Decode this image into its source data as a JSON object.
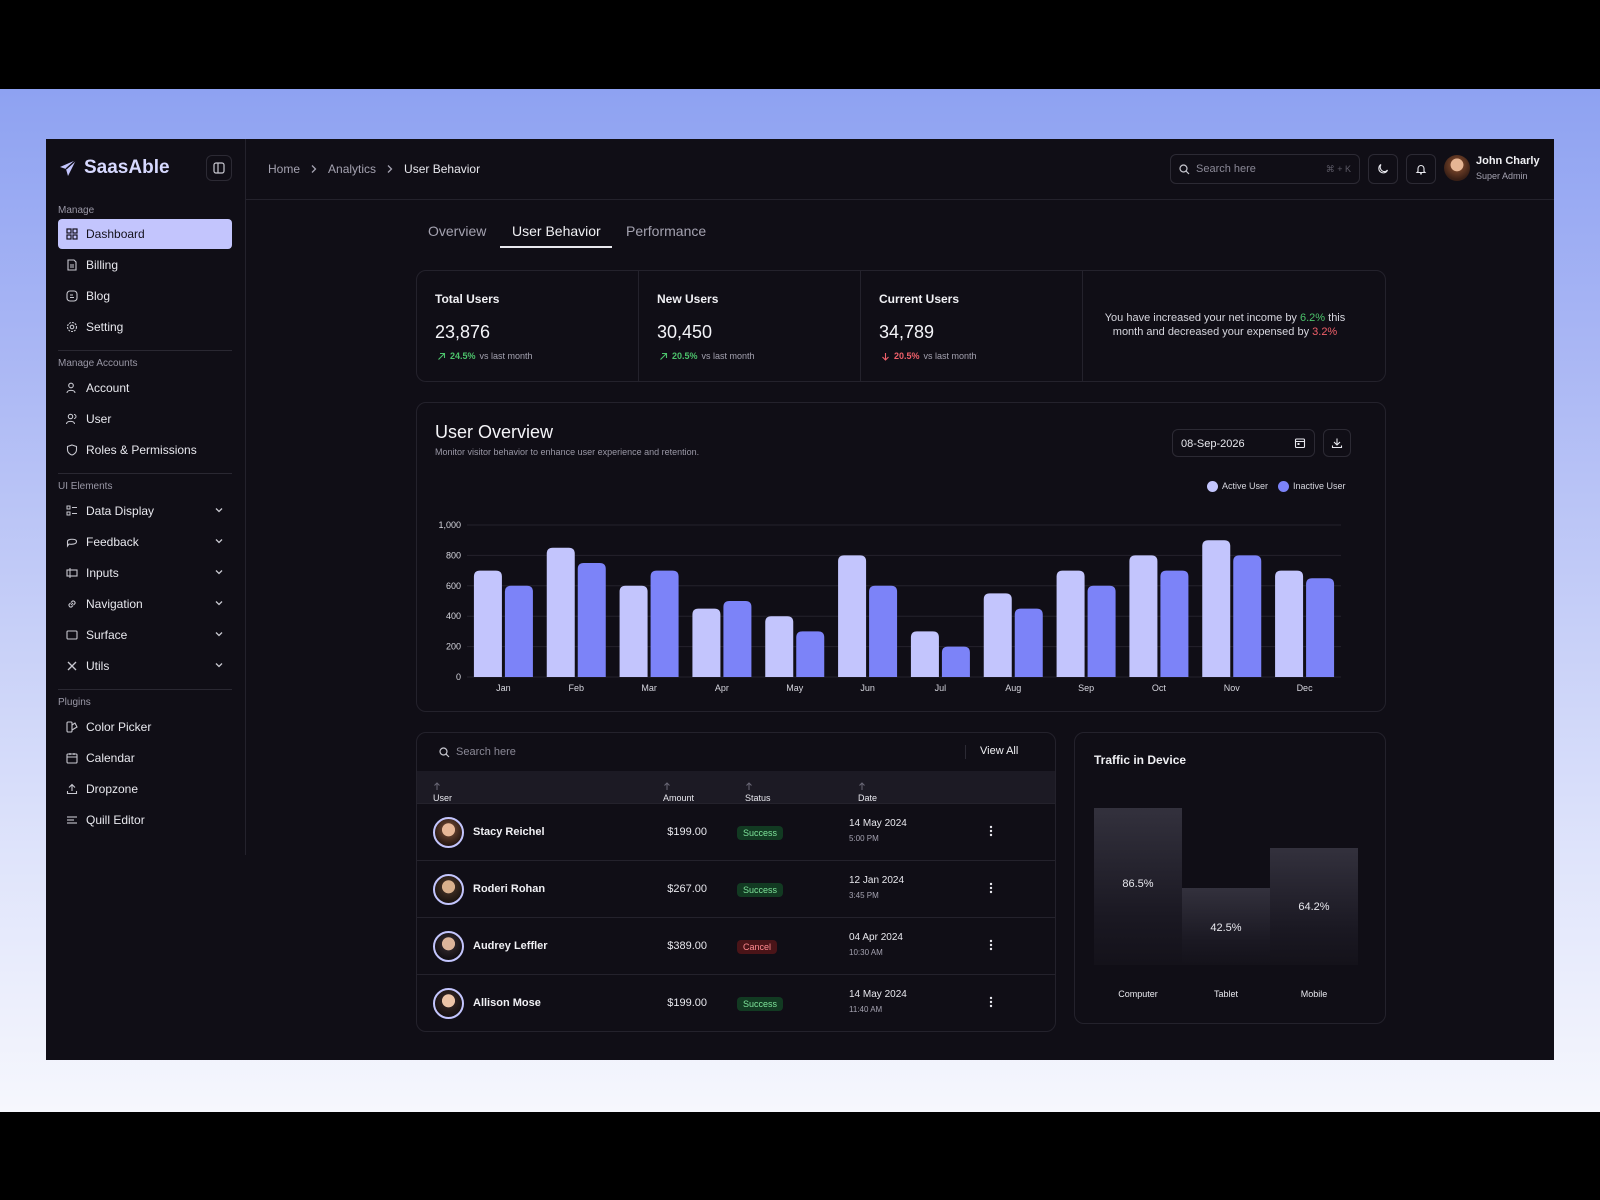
{
  "brand": {
    "name": "SaasAble",
    "accent": "#c3c5fd"
  },
  "sidebar": {
    "sections": [
      {
        "title": "Manage",
        "items": [
          {
            "label": "Dashboard",
            "icon": "grid-icon",
            "active": true
          },
          {
            "label": "Billing",
            "icon": "file-icon"
          },
          {
            "label": "Blog",
            "icon": "blog-icon"
          },
          {
            "label": "Setting",
            "icon": "gear-icon"
          }
        ]
      },
      {
        "title": "Manage Accounts",
        "items": [
          {
            "label": "Account",
            "icon": "user-key-icon"
          },
          {
            "label": "User",
            "icon": "users-icon"
          },
          {
            "label": "Roles & Permissions",
            "icon": "shield-icon"
          }
        ]
      },
      {
        "title": "UI Elements",
        "items": [
          {
            "label": "Data Display",
            "icon": "list-icon"
          },
          {
            "label": "Feedback",
            "icon": "chat-icon"
          },
          {
            "label": "Inputs",
            "icon": "input-icon"
          },
          {
            "label": "Navigation",
            "icon": "link-icon"
          },
          {
            "label": "Surface",
            "icon": "square-icon"
          },
          {
            "label": "Utils",
            "icon": "tools-icon"
          }
        ]
      },
      {
        "title": "Plugins",
        "items": [
          {
            "label": "Color Picker",
            "icon": "color-icon"
          },
          {
            "label": "Calendar",
            "icon": "calendar-icon"
          },
          {
            "label": "Dropzone",
            "icon": "upload-icon"
          },
          {
            "label": "Quill Editor",
            "icon": "text-icon"
          }
        ]
      }
    ]
  },
  "header": {
    "breadcrumb": [
      "Home",
      "Analytics",
      "User Behavior"
    ],
    "search_placeholder": "Search here",
    "search_shortcut": "⌘ + K",
    "user_name": "John Charly",
    "user_role": "Super Admin"
  },
  "tabs": [
    "Overview",
    "User Behavior",
    "Performance"
  ],
  "stats": [
    {
      "label": "Total Users",
      "value": "23,876",
      "change": "24.5%",
      "direction": "up",
      "note": "vs last month"
    },
    {
      "label": "New Users",
      "value": "30,450",
      "change": "20.5%",
      "direction": "up",
      "note": "vs last month"
    },
    {
      "label": "Current Users",
      "value": "34,789",
      "change": "20.5%",
      "direction": "down",
      "note": "vs last month"
    }
  ],
  "income_note": {
    "part1": "You have increased your net income by ",
    "up_value": "6.2%",
    "part2": " this month and decreased your expensed by ",
    "down_value": "3.2%"
  },
  "overview": {
    "title": "User Overview",
    "subtitle": "Monitor visitor behavior to enhance user experience and retention.",
    "date": "08-Sep-2026"
  },
  "chart_data": {
    "type": "bar",
    "categories": [
      "Jan",
      "Feb",
      "Mar",
      "Apr",
      "May",
      "Jun",
      "Jul",
      "Aug",
      "Sep",
      "Oct",
      "Nov",
      "Dec"
    ],
    "series": [
      {
        "name": "Active User",
        "color": "#c3c5fd",
        "values": [
          700,
          850,
          600,
          450,
          400,
          800,
          300,
          550,
          700,
          800,
          900,
          700
        ]
      },
      {
        "name": "Inactive User",
        "color": "#7c83f8",
        "values": [
          600,
          750,
          700,
          500,
          300,
          600,
          200,
          450,
          600,
          700,
          800,
          650
        ]
      }
    ],
    "ylim": [
      0,
      1000
    ],
    "yticks": [
      "0",
      "200",
      "400",
      "600",
      "800",
      "1,000"
    ],
    "grid": true,
    "legend": "top-right"
  },
  "table": {
    "search_placeholder": "Search here",
    "view_all": "View All",
    "columns": [
      "User",
      "Amount",
      "Status",
      "Date"
    ],
    "rows": [
      {
        "name": "Stacy Reichel",
        "amount": "$199.00",
        "status": "Success",
        "date": "14 May 2024",
        "time": "5:00 PM"
      },
      {
        "name": "Roderi Rohan",
        "amount": "$267.00",
        "status": "Success",
        "date": "12 Jan 2024",
        "time": "3:45 PM"
      },
      {
        "name": "Audrey Leffler",
        "amount": "$389.00",
        "status": "Cancel",
        "date": "04 Apr 2024",
        "time": "10:30 AM"
      },
      {
        "name": "Allison Mose",
        "amount": "$199.00",
        "status": "Success",
        "date": "14 May 2024",
        "time": "11:40 AM"
      }
    ]
  },
  "traffic": {
    "title": "Traffic in Device",
    "devices": [
      {
        "label": "Computer",
        "value": 86.5,
        "display": "86.5%"
      },
      {
        "label": "Tablet",
        "value": 42.5,
        "display": "42.5%"
      },
      {
        "label": "Mobile",
        "value": 64.2,
        "display": "64.2%"
      }
    ]
  }
}
